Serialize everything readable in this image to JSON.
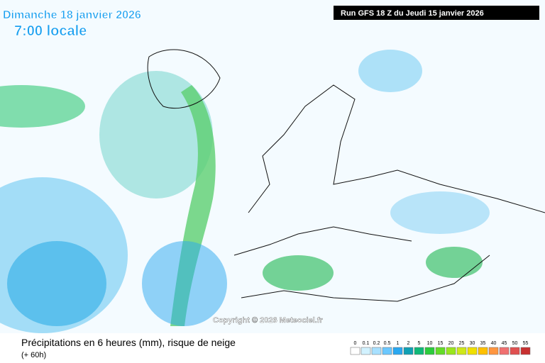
{
  "header": {
    "date": "Dimanche 18 janvier 2026",
    "time": "7:00 locale",
    "run": "Run GFS 18 Z du Jeudi 15 janvier 2026"
  },
  "copyright": "Copyright © 2026 Meteociel.fr",
  "footer": {
    "title": "Précipitations en 6 heures (mm), risque de neige",
    "lead": "(+ 60h)"
  },
  "legend": {
    "labels": [
      "0",
      "0.1",
      "0.2",
      "0.5",
      "1",
      "2",
      "5",
      "10",
      "15",
      "20",
      "25",
      "30",
      "35",
      "40",
      "45",
      "50",
      "55"
    ],
    "colors": [
      "#ffffff",
      "#d2f2ff",
      "#a8e0ff",
      "#6cc8ff",
      "#2aa8f0",
      "#10a0b4",
      "#10b878",
      "#2ccc3c",
      "#64dc28",
      "#9ae61e",
      "#cfe81a",
      "#f0e000",
      "#ffc000",
      "#ff9640",
      "#f07070",
      "#e05050",
      "#c83030"
    ]
  }
}
